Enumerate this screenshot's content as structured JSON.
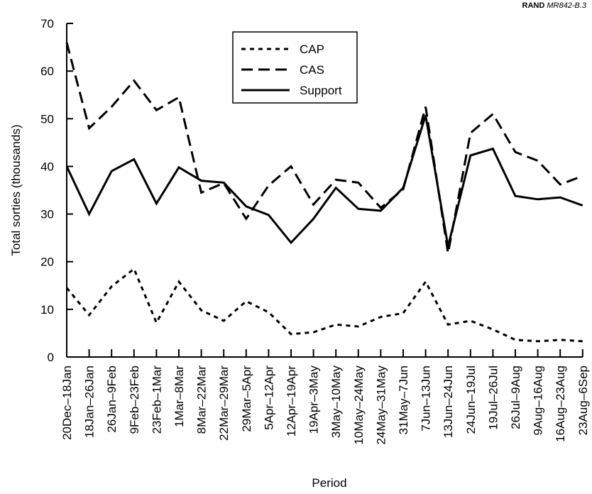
{
  "source_note": {
    "bold": "RAND",
    "italic": "MR842-B.3"
  },
  "chart_data": {
    "type": "line",
    "title": "",
    "xlabel": "Period",
    "ylabel": "Total sorties (thousands)",
    "ylim": [
      0,
      70
    ],
    "yticks": [
      0,
      10,
      20,
      30,
      40,
      50,
      60,
      70
    ],
    "grid": false,
    "legend_position": "top-center",
    "categories": [
      "20Dec–18Jan",
      "18Jan–26Jan",
      "26Jan–9Feb",
      "9Feb–23Feb",
      "23Feb–1Mar",
      "1Mar–8Mar",
      "8Mar–22Mar",
      "22Mar–29Mar",
      "29Mar–5Apr",
      "5Apr–12Apr",
      "12Apr–19Apr",
      "19Apr–3May",
      "3May–10May",
      "10May–24May",
      "24May–31May",
      "31May–7Jun",
      "7Jun–13Jun",
      "13Jun–24Jun",
      "24Jun–19Jul",
      "19Jul–26Jul",
      "26Jul–9Aug",
      "9Aug–16Aug",
      "16Aug–23Aug",
      "23Aug–6Sep"
    ],
    "series": [
      {
        "name": "CAP",
        "dash": "dotted",
        "values": [
          14.5,
          8.8,
          14.8,
          18.5,
          7.2,
          15.8,
          9.8,
          7.6,
          11.7,
          9.4,
          4.8,
          5.2,
          6.8,
          6.4,
          8.4,
          9.2,
          15.8,
          6.8,
          7.6,
          5.8,
          3.6,
          3.3,
          3.6,
          3.3
        ]
      },
      {
        "name": "CAS",
        "dash": "dashed",
        "values": [
          66,
          48,
          52.5,
          58,
          51.8,
          54.5,
          34.5,
          36.5,
          29,
          36,
          40,
          32,
          37.2,
          36.6,
          31.3,
          35.2,
          52.5,
          21.8,
          47,
          51,
          43,
          41.2,
          36.2,
          38
        ]
      },
      {
        "name": "Support",
        "dash": "solid",
        "values": [
          40,
          30,
          39,
          41.5,
          32.2,
          39.8,
          37,
          36.6,
          31.6,
          29.8,
          24,
          29,
          35.5,
          31.1,
          30.7,
          35.5,
          50.7,
          23.2,
          42.3,
          43.7,
          33.8,
          33.1,
          33.5,
          31.8
        ]
      }
    ]
  }
}
